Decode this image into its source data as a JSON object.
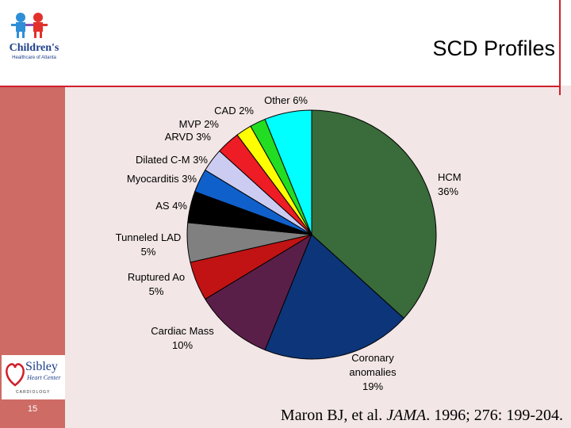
{
  "header": {
    "title": "SCD Profiles"
  },
  "logos": {
    "top_logo_text": "Children's",
    "top_logo_subtext": "Healthcare of Atlanta",
    "bottom_logo_name": "Sibley",
    "bottom_logo_sub": "Heart Center",
    "bottom_logo_tag": "CARDIOLOGY"
  },
  "footer": {
    "page_number": "15",
    "citation_pre": "Maron BJ, et al. ",
    "citation_journal": "JAMA",
    "citation_post": ". 1996; 276: 199-204."
  },
  "colors": {
    "accent_red": "#d01f2b",
    "left_bar": "#cd6b64",
    "slide_bg": "#f2e6e6"
  },
  "chart_data": {
    "type": "pie",
    "title": "",
    "start": "12 o'clock, clockwise",
    "slices": [
      {
        "label": "HCM",
        "value": 36,
        "color": "#3a6b3a",
        "display": [
          "HCM",
          "36%"
        ]
      },
      {
        "label": "Coronary anomalies",
        "value": 19,
        "color": "#0d3579",
        "display": [
          "Coronary",
          "anomalies",
          "19%"
        ]
      },
      {
        "label": "Cardiac Mass",
        "value": 10,
        "color": "#5a1f48",
        "display": [
          "Cardiac Mass",
          "10%"
        ]
      },
      {
        "label": "Ruptured Ao",
        "value": 5,
        "color": "#c11313",
        "display": [
          "Ruptured Ao",
          "5%"
        ]
      },
      {
        "label": "Tunneled LAD",
        "value": 5,
        "color": "#808080",
        "display": [
          "Tunneled LAD",
          "5%"
        ]
      },
      {
        "label": "AS",
        "value": 4,
        "color": "#000000",
        "display": [
          "AS  4%"
        ]
      },
      {
        "label": "Myocarditis",
        "value": 3,
        "color": "#1060cc",
        "display": [
          "Myocarditis  3%"
        ]
      },
      {
        "label": "Dilated C-M",
        "value": 3,
        "color": "#ccccf2",
        "display": [
          "Dilated C-M  3%"
        ]
      },
      {
        "label": "ARVD",
        "value": 3,
        "color": "#ee1c24",
        "display": [
          "ARVD 3%"
        ]
      },
      {
        "label": "MVP",
        "value": 2,
        "color": "#ffff00",
        "display": [
          "MVP 2%"
        ]
      },
      {
        "label": "CAD",
        "value": 2,
        "color": "#22dd22",
        "display": [
          "CAD 2%"
        ]
      },
      {
        "label": "Other",
        "value": 6,
        "color": "#00ffff",
        "display": [
          "Other 6%"
        ]
      }
    ]
  }
}
